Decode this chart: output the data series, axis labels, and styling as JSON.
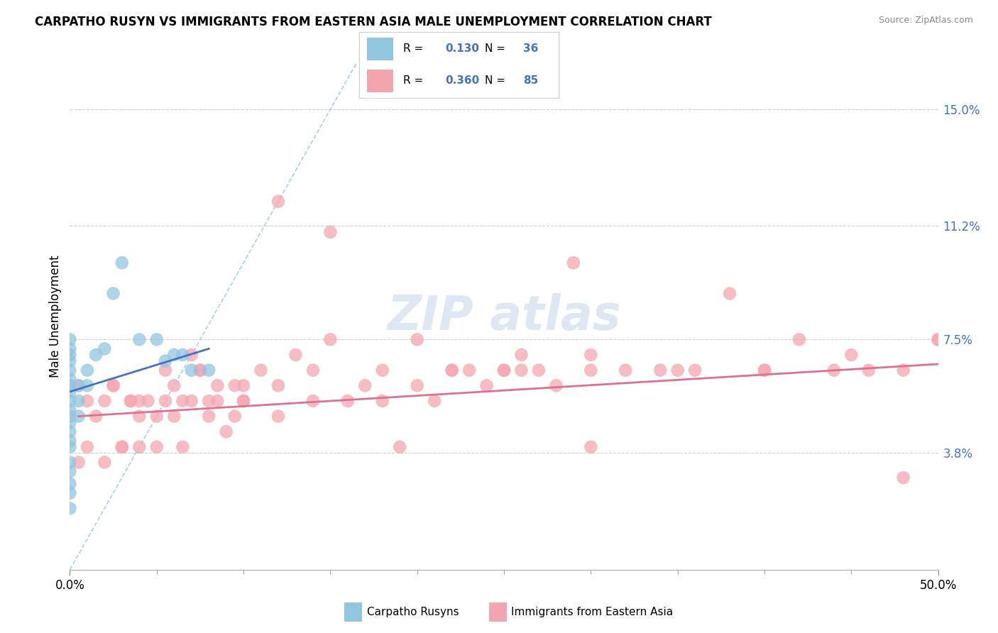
{
  "title": "CARPATHO RUSYN VS IMMIGRANTS FROM EASTERN ASIA MALE UNEMPLOYMENT CORRELATION CHART",
  "source": "Source: ZipAtlas.com",
  "ylabel": "Male Unemployment",
  "yticks": [
    0.038,
    0.075,
    0.112,
    0.15
  ],
  "ytick_labels": [
    "3.8%",
    "7.5%",
    "11.2%",
    "15.0%"
  ],
  "xlim": [
    0.0,
    0.5
  ],
  "ylim": [
    0.0,
    0.165
  ],
  "legend_r1": "R = 0.130",
  "legend_n1": "N = 36",
  "legend_r2": "R = 0.360",
  "legend_n2": "N = 85",
  "color_blue": "#92C5DE",
  "color_pink": "#F4A6B0",
  "color_blue_line": "#4472C4",
  "color_pink_line": "#E07090",
  "color_blue_text": "#4472C4",
  "blue_scatter_x": [
    0.0,
    0.0,
    0.0,
    0.0,
    0.0,
    0.0,
    0.0,
    0.0,
    0.0,
    0.0,
    0.0,
    0.0,
    0.0,
    0.0,
    0.0,
    0.0,
    0.0,
    0.0,
    0.0,
    0.0,
    0.005,
    0.005,
    0.005,
    0.01,
    0.01,
    0.015,
    0.02,
    0.025,
    0.03,
    0.04,
    0.05,
    0.055,
    0.06,
    0.065,
    0.07,
    0.08
  ],
  "blue_scatter_y": [
    0.075,
    0.072,
    0.07,
    0.068,
    0.065,
    0.062,
    0.06,
    0.058,
    0.055,
    0.052,
    0.05,
    0.048,
    0.045,
    0.042,
    0.04,
    0.035,
    0.032,
    0.028,
    0.025,
    0.02,
    0.06,
    0.055,
    0.05,
    0.065,
    0.06,
    0.07,
    0.072,
    0.09,
    0.1,
    0.075,
    0.075,
    0.068,
    0.07,
    0.07,
    0.065,
    0.065
  ],
  "pink_scatter_x": [
    0.005,
    0.01,
    0.015,
    0.02,
    0.025,
    0.03,
    0.035,
    0.04,
    0.04,
    0.045,
    0.05,
    0.055,
    0.06,
    0.065,
    0.07,
    0.075,
    0.08,
    0.085,
    0.09,
    0.095,
    0.1,
    0.1,
    0.11,
    0.12,
    0.13,
    0.14,
    0.15,
    0.16,
    0.17,
    0.18,
    0.19,
    0.2,
    0.21,
    0.22,
    0.23,
    0.24,
    0.25,
    0.26,
    0.27,
    0.28,
    0.29,
    0.3,
    0.32,
    0.34,
    0.36,
    0.38,
    0.4,
    0.42,
    0.44,
    0.46,
    0.48,
    0.5,
    0.005,
    0.01,
    0.02,
    0.03,
    0.04,
    0.05,
    0.06,
    0.07,
    0.08,
    0.1,
    0.12,
    0.14,
    0.18,
    0.22,
    0.26,
    0.3,
    0.35,
    0.4,
    0.45,
    0.5,
    0.025,
    0.035,
    0.055,
    0.065,
    0.075,
    0.085,
    0.095,
    0.12,
    0.15,
    0.2,
    0.25,
    0.3,
    0.48
  ],
  "pink_scatter_y": [
    0.06,
    0.055,
    0.05,
    0.055,
    0.06,
    0.04,
    0.055,
    0.055,
    0.05,
    0.055,
    0.04,
    0.055,
    0.06,
    0.04,
    0.07,
    0.065,
    0.055,
    0.06,
    0.045,
    0.05,
    0.055,
    0.06,
    0.065,
    0.06,
    0.07,
    0.065,
    0.075,
    0.055,
    0.06,
    0.065,
    0.04,
    0.06,
    0.055,
    0.065,
    0.065,
    0.06,
    0.065,
    0.07,
    0.065,
    0.06,
    0.1,
    0.065,
    0.065,
    0.065,
    0.065,
    0.09,
    0.065,
    0.075,
    0.065,
    0.065,
    0.065,
    0.075,
    0.035,
    0.04,
    0.035,
    0.04,
    0.04,
    0.05,
    0.05,
    0.055,
    0.05,
    0.055,
    0.05,
    0.055,
    0.055,
    0.065,
    0.065,
    0.07,
    0.065,
    0.065,
    0.07,
    0.075,
    0.06,
    0.055,
    0.065,
    0.055,
    0.065,
    0.055,
    0.06,
    0.12,
    0.11,
    0.075,
    0.065,
    0.04,
    0.03
  ],
  "diag_line_x": [
    0.0,
    0.165
  ],
  "diag_line_y": [
    0.0,
    0.165
  ],
  "blue_trend_x_start": 0.0,
  "blue_trend_x_end": 0.08,
  "blue_trend_y_start": 0.058,
  "blue_trend_y_end": 0.072,
  "pink_trend_x_start": 0.005,
  "pink_trend_x_end": 0.5,
  "pink_trend_y_start": 0.05,
  "pink_trend_y_end": 0.067
}
